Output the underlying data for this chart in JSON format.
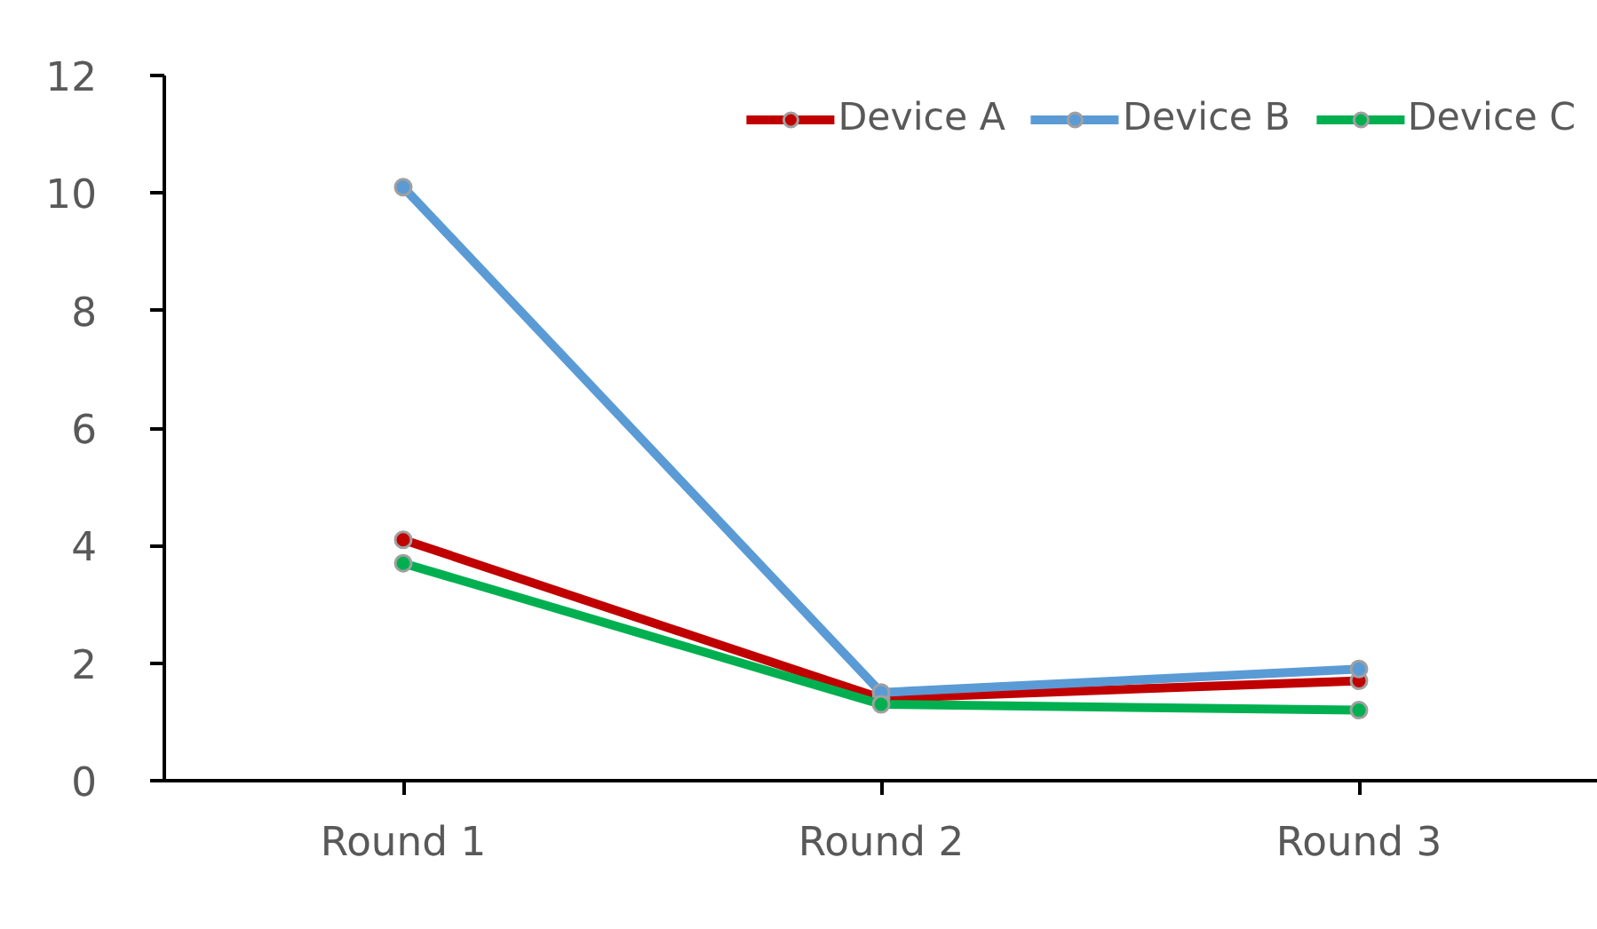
{
  "chart_data": {
    "type": "line",
    "categories": [
      "Round 1",
      "Round 2",
      "Round 3"
    ],
    "series": [
      {
        "name": "Device A",
        "color": "#c00000",
        "values": [
          4.1,
          1.4,
          1.7
        ]
      },
      {
        "name": "Device B",
        "color": "#5b9bd5",
        "values": [
          10.1,
          1.5,
          1.9
        ]
      },
      {
        "name": "Device C",
        "color": "#00b050",
        "values": [
          3.7,
          1.3,
          1.2
        ]
      }
    ],
    "ylim": [
      0,
      12
    ],
    "yticks": [
      0,
      2,
      4,
      6,
      8,
      10,
      12
    ],
    "grid": false,
    "legend": "top right",
    "marker": "circle",
    "line_style": "solid"
  }
}
